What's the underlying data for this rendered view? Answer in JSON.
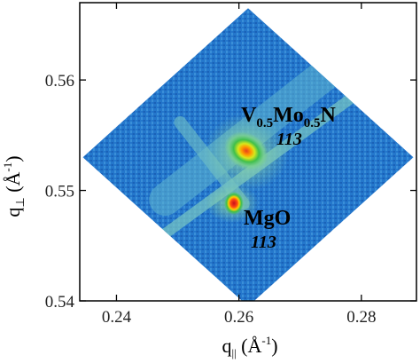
{
  "chart_data": {
    "type": "heatmap",
    "title": "",
    "xlabel": "q",
    "xlabel_sub": "||",
    "xlabel_unit_open": " (Å",
    "xlabel_unit_sup": "-1",
    "xlabel_unit_close": ")",
    "ylabel": "q",
    "ylabel_sub": "⊥",
    "ylabel_unit_open": " (Å",
    "ylabel_unit_sup": "-1",
    "ylabel_unit_close": ")",
    "xlim": [
      0.234,
      0.289
    ],
    "ylim": [
      0.54,
      0.567
    ],
    "x_ticks": [
      {
        "value": 0.24,
        "label": "0.24"
      },
      {
        "value": 0.26,
        "label": "0.26"
      },
      {
        "value": 0.28,
        "label": "0.28"
      }
    ],
    "y_ticks": [
      {
        "value": 0.54,
        "label": "0.54"
      },
      {
        "value": 0.55,
        "label": "0.55"
      },
      {
        "value": 0.56,
        "label": "0.56"
      }
    ],
    "map_region": {
      "shape": "diamond",
      "vertices": [
        [
          0.2615,
          0.5665
        ],
        [
          0.2885,
          0.553
        ],
        [
          0.2615,
          0.5395
        ],
        [
          0.2345,
          0.553
        ]
      ]
    },
    "peaks": [
      {
        "name": "V0.5Mo0.5N",
        "x": 0.2609,
        "y": 0.5533,
        "intensity": "high"
      },
      {
        "name": "MgO",
        "x": 0.2588,
        "y": 0.5487,
        "intensity": "very high"
      }
    ],
    "annotations": [
      {
        "id": "film",
        "base": "V",
        "sub1": "0.5",
        "mid": "Mo",
        "sub2": "0.5",
        "tail": "N",
        "index": "113"
      },
      {
        "id": "substrate",
        "text": "MgO",
        "index": "113"
      }
    ],
    "colormap": [
      "#1f6fc8",
      "#2a8fd8",
      "#49b0d6",
      "#6fcab3",
      "#8fd88c",
      "#3fbf4a",
      "#c8e61e",
      "#ffb400",
      "#e5401d"
    ],
    "grid": false
  }
}
